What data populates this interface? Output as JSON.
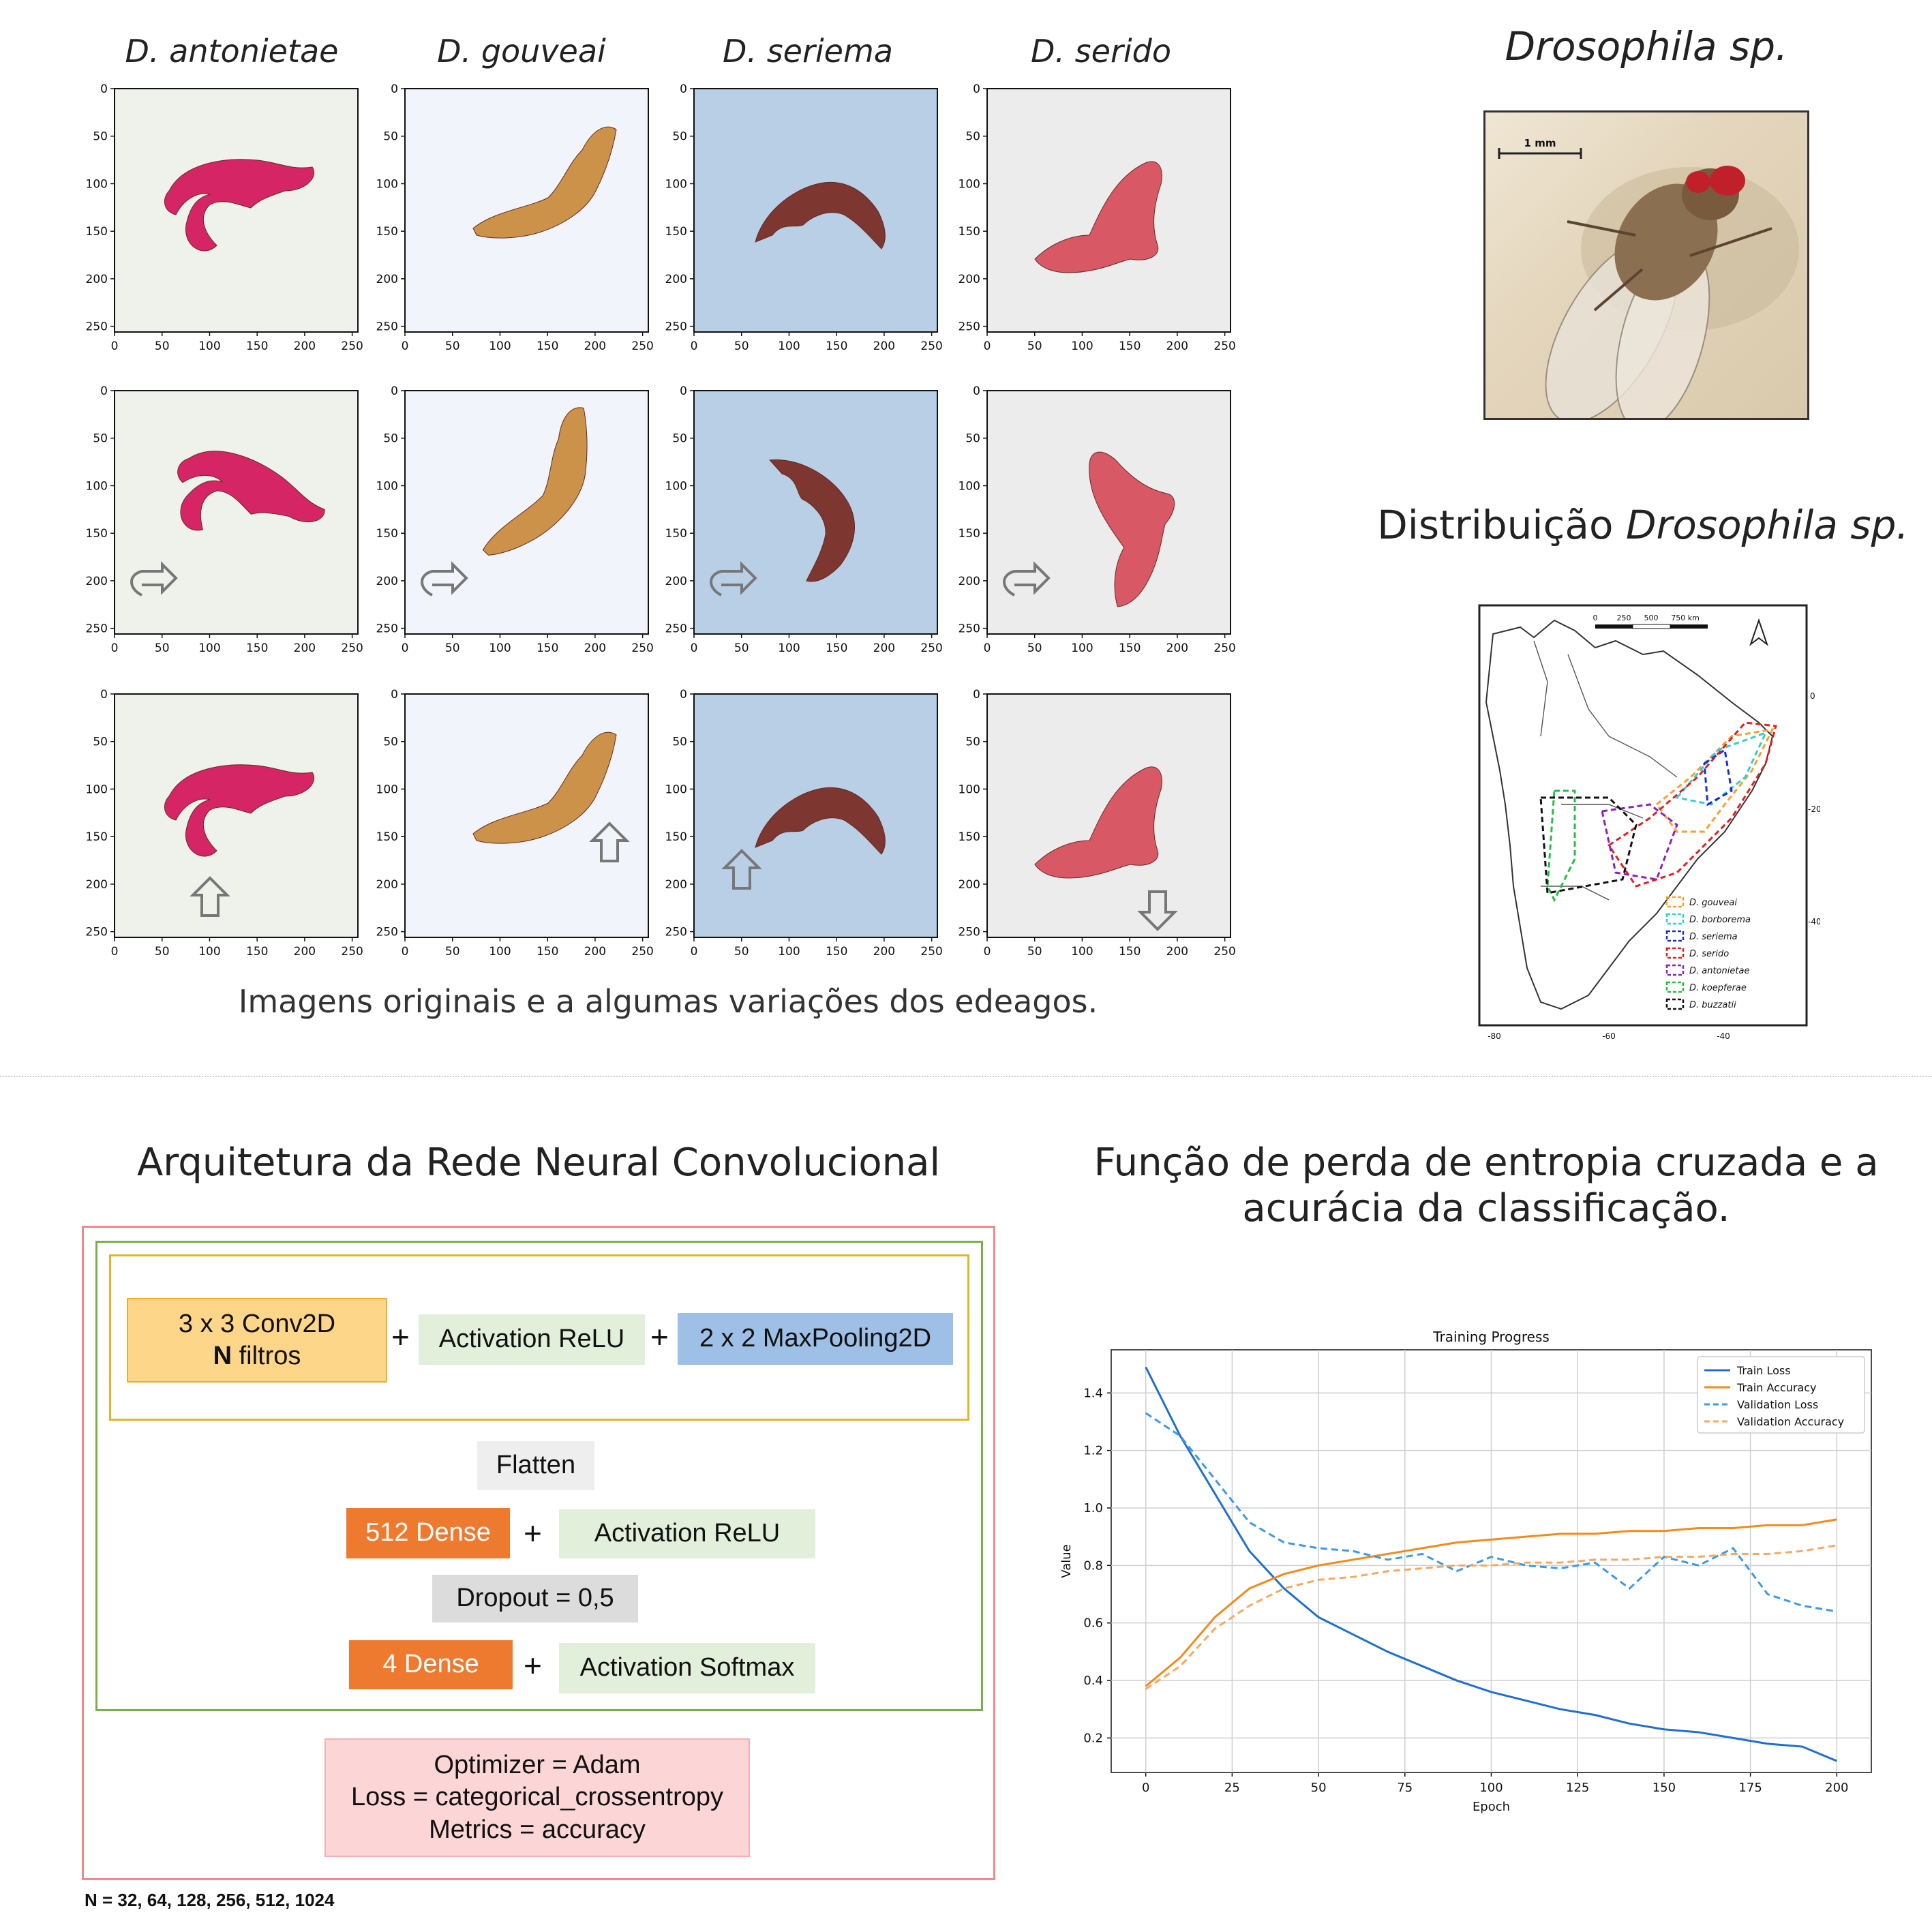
{
  "species_titles": [
    "D. antonietae",
    "D. gouveai",
    "D. seriema",
    "D. serido"
  ],
  "panel_axis": {
    "xticks": [
      "0",
      "50",
      "100",
      "150",
      "200",
      "250"
    ],
    "yticks": [
      "0",
      "50",
      "100",
      "150",
      "200",
      "250"
    ]
  },
  "augment_caption": "Imagens originais e a algumas variações dos edeagos.",
  "photo": {
    "title": "Drosophila sp.",
    "scale_label": "1 mm"
  },
  "distribution": {
    "title_prefix": "Distribuição ",
    "title_italic": "Drosophila sp.",
    "scalebar_labels": [
      "0",
      "250",
      "500",
      "750 km"
    ],
    "y_ticks": [
      "0",
      "-20",
      "-40"
    ],
    "x_ticks": [
      "-80",
      "-60",
      "-40"
    ],
    "legend": [
      {
        "label": "D. gouveai",
        "color": "#f5a030"
      },
      {
        "label": "D. borborema",
        "color": "#30d0d0"
      },
      {
        "label": "D. seriema",
        "color": "#1a2bd0"
      },
      {
        "label": "D. serido",
        "color": "#e02020"
      },
      {
        "label": "D. antonietae",
        "color": "#8a20c0"
      },
      {
        "label": "D. koepferae",
        "color": "#20c040"
      },
      {
        "label": "D. buzzatii",
        "color": "#111111"
      }
    ]
  },
  "architecture": {
    "title": "Arquitetura da Rede Neural Convolucional",
    "conv_line1": "3 x 3 Conv2D",
    "conv_line2_bold": "N",
    "conv_line2_rest": " filtros",
    "relu1": "Activation ReLU",
    "maxpool": "2 x 2 MaxPooling2D",
    "flatten": "Flatten",
    "dense512": "512 Dense",
    "relu2": "Activation ReLU",
    "dropout": "Dropout = 0,5",
    "dense4": "4 Dense",
    "softmax": "Activation Softmax",
    "optimizer": "Optimizer = Adam",
    "loss": "Loss = categorical_crossentropy",
    "metrics": "Metrics = accuracy",
    "plus": "+",
    "n_note": "N = 32, 64, 128, 256, 512, 1024",
    "colors": {
      "conv": "#fdd68a",
      "relu": "#e2efda",
      "maxpool": "#9fc0e6",
      "flatten": "#eeeeee",
      "dense": "#ee7a30",
      "dropout": "#dcdcdc",
      "opt": "#fcd6d6"
    }
  },
  "loss_section_title_line1": "Função de perda de entropia cruzada e a",
  "loss_section_title_line2": "acurácia da classificação.",
  "chart_data": {
    "type": "line",
    "title": "Training Progress",
    "xlabel": "Epoch",
    "ylabel": "Value",
    "xlim": [
      -10,
      210
    ],
    "ylim": [
      0.08,
      1.55
    ],
    "xticks": [
      0,
      25,
      50,
      75,
      100,
      125,
      150,
      175,
      200
    ],
    "yticks": [
      0.2,
      0.4,
      0.6,
      0.8,
      1.0,
      1.2,
      1.4
    ],
    "grid": true,
    "legend_position": "top-right",
    "x": [
      0,
      10,
      20,
      30,
      40,
      50,
      60,
      70,
      80,
      90,
      100,
      110,
      120,
      130,
      140,
      150,
      160,
      170,
      180,
      190,
      200
    ],
    "series": [
      {
        "name": "Train Loss",
        "style": "solid",
        "color": "#1f6fd1",
        "values": [
          1.49,
          1.25,
          1.05,
          0.85,
          0.72,
          0.62,
          0.56,
          0.5,
          0.45,
          0.4,
          0.36,
          0.33,
          0.3,
          0.28,
          0.25,
          0.23,
          0.22,
          0.2,
          0.18,
          0.17,
          0.12
        ]
      },
      {
        "name": "Train Accuracy",
        "style": "solid",
        "color": "#f28a1c",
        "values": [
          0.38,
          0.48,
          0.62,
          0.72,
          0.77,
          0.8,
          0.82,
          0.84,
          0.86,
          0.88,
          0.89,
          0.9,
          0.91,
          0.91,
          0.92,
          0.92,
          0.93,
          0.93,
          0.94,
          0.94,
          0.96
        ]
      },
      {
        "name": "Validation Loss",
        "style": "dashed",
        "color": "#3a9ae8",
        "values": [
          1.33,
          1.25,
          1.1,
          0.95,
          0.88,
          0.86,
          0.85,
          0.82,
          0.84,
          0.78,
          0.83,
          0.8,
          0.79,
          0.81,
          0.72,
          0.83,
          0.8,
          0.86,
          0.7,
          0.66,
          0.64
        ]
      },
      {
        "name": "Validation Accuracy",
        "style": "dashed",
        "color": "#f7a860",
        "values": [
          0.37,
          0.45,
          0.58,
          0.66,
          0.72,
          0.75,
          0.76,
          0.78,
          0.79,
          0.8,
          0.8,
          0.81,
          0.81,
          0.82,
          0.82,
          0.83,
          0.83,
          0.84,
          0.84,
          0.85,
          0.87
        ]
      }
    ]
  }
}
